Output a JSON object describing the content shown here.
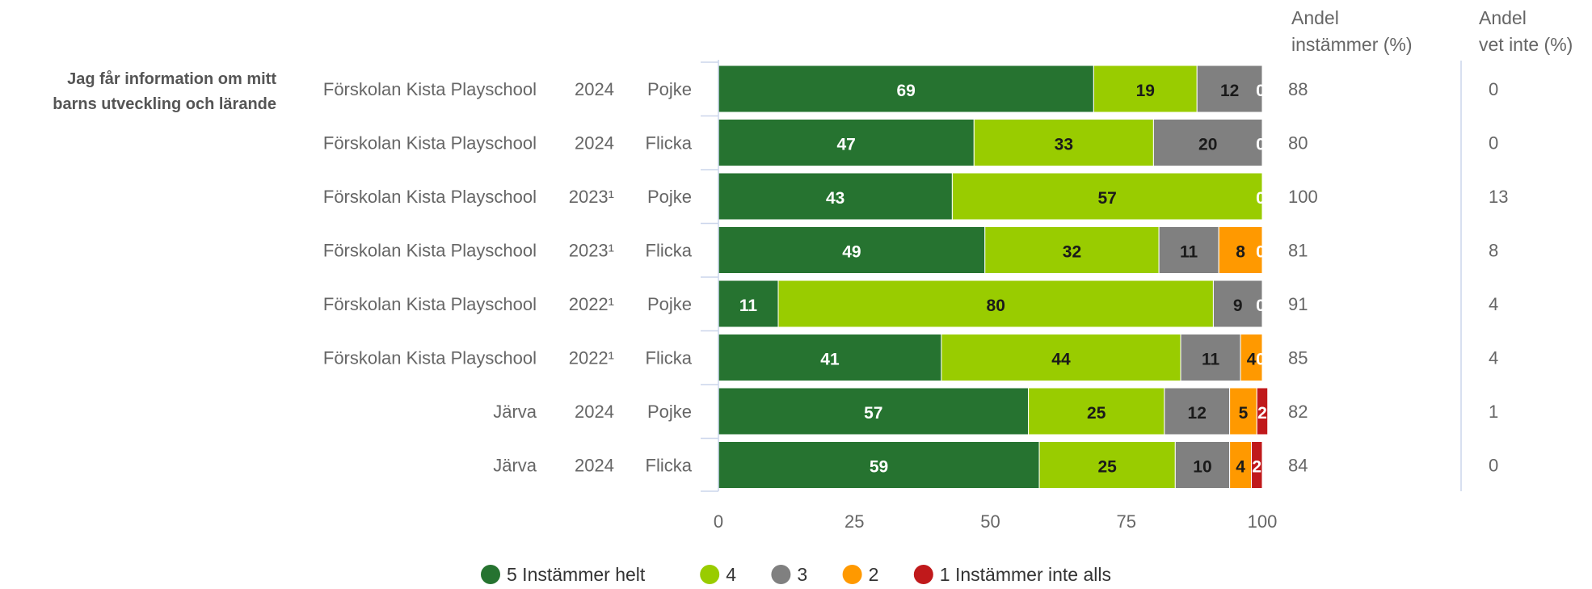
{
  "chart_data": {
    "type": "bar",
    "orientation": "horizontal",
    "stacked": true,
    "question": "Jag får information om mitt barns utveckling och lärande",
    "xlim": [
      0,
      100
    ],
    "xticks": [
      0,
      25,
      50,
      75,
      100
    ],
    "grid": false,
    "legend_position": "bottom",
    "column_headers": {
      "school": "",
      "year": "",
      "gender": "",
      "share_agree": "Andel instämmer (%)",
      "share_dont_know": "Andel vet inte (%)"
    },
    "rows": [
      {
        "school": "Förskolan Kista Playschool",
        "year": "2024",
        "gender": "Pojke",
        "share_agree": "88",
        "share_dont_know": "0"
      },
      {
        "school": "Förskolan Kista Playschool",
        "year": "2024",
        "gender": "Flicka",
        "share_agree": "80",
        "share_dont_know": "0"
      },
      {
        "school": "Förskolan Kista Playschool",
        "year": "2023¹",
        "gender": "Pojke",
        "share_agree": "100",
        "share_dont_know": "13"
      },
      {
        "school": "Förskolan Kista Playschool",
        "year": "2023¹",
        "gender": "Flicka",
        "share_agree": "81",
        "share_dont_know": "8"
      },
      {
        "school": "Förskolan Kista Playschool",
        "year": "2022¹",
        "gender": "Pojke",
        "share_agree": "91",
        "share_dont_know": "4"
      },
      {
        "school": "Förskolan Kista Playschool",
        "year": "2022¹",
        "gender": "Flicka",
        "share_agree": "85",
        "share_dont_know": "4"
      },
      {
        "school": "Järva",
        "year": "2024",
        "gender": "Pojke",
        "share_agree": "82",
        "share_dont_know": "1"
      },
      {
        "school": "Järva",
        "year": "2024",
        "gender": "Flicka",
        "share_agree": "84",
        "share_dont_know": "0"
      }
    ],
    "series": [
      {
        "name": "5 Instämmer helt",
        "color": "#267330",
        "label_color": "#ffffff",
        "values": [
          69,
          47,
          43,
          49,
          11,
          41,
          57,
          59
        ]
      },
      {
        "name": "4",
        "color": "#99cc00",
        "label_color": "#1a1a1a",
        "values": [
          19,
          33,
          57,
          32,
          80,
          44,
          25,
          25
        ]
      },
      {
        "name": "3",
        "color": "#808080",
        "label_color": "#1a1a1a",
        "values": [
          12,
          20,
          0,
          11,
          9,
          11,
          12,
          10
        ]
      },
      {
        "name": "2",
        "color": "#ff9900",
        "label_color": "#1a1a1a",
        "values": [
          0,
          0,
          0,
          8,
          0,
          4,
          5,
          4
        ]
      },
      {
        "name": "1 Instämmer inte alls",
        "color": "#c0191b",
        "label_color": "#ffffff",
        "values": [
          0,
          0,
          0,
          0,
          0,
          0,
          2,
          2
        ]
      }
    ],
    "zero_labels": [
      {
        "row": 0,
        "series": 3,
        "text": "0"
      },
      {
        "row": 1,
        "series": 3,
        "text": "0"
      },
      {
        "row": 2,
        "series": 3,
        "text": "0"
      },
      {
        "row": 3,
        "series": 4,
        "text": "0"
      },
      {
        "row": 4,
        "series": 3,
        "text": "0"
      },
      {
        "row": 5,
        "series": 4,
        "text": "0"
      }
    ]
  }
}
